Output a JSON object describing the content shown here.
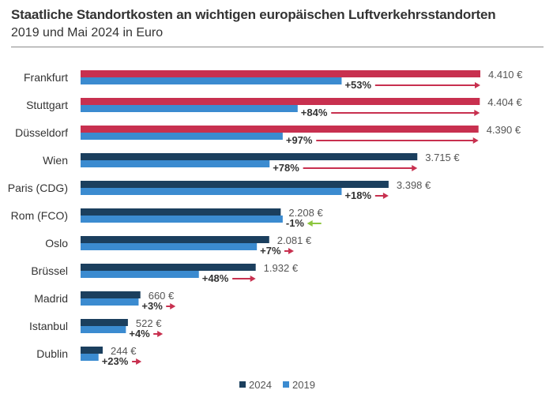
{
  "title": "Staatliche Standortkosten an wichtigen europäischen Luftverkehrsstandorten",
  "subtitle": "2019 und Mai 2024 in Euro",
  "colors": {
    "highlight_2024": "#c8304f",
    "series_2024": "#1b3f5e",
    "series_2019": "#3b8bd0",
    "arrow_up": "#c8304f",
    "arrow_down": "#8dc63f"
  },
  "chart_data": {
    "type": "bar",
    "orientation": "horizontal",
    "categories": [
      "Frankfurt",
      "Stuttgart",
      "Düsseldorf",
      "Wien",
      "Paris (CDG)",
      "Rom (FCO)",
      "Oslo",
      "Brüssel",
      "Madrid",
      "Istanbul",
      "Dublin"
    ],
    "series": [
      {
        "name": "2024",
        "values": [
          4410,
          4404,
          4390,
          3715,
          3398,
          2208,
          2081,
          1932,
          660,
          522,
          244
        ],
        "labels": [
          "4.410 €",
          "4.404 €",
          "4.390 €",
          "3.715 €",
          "3.398 €",
          "2.208 €",
          "2.081 €",
          "1.932 €",
          "660 €",
          "522 €",
          "244 €"
        ],
        "highlighted": [
          true,
          true,
          true,
          false,
          false,
          false,
          false,
          false,
          false,
          false,
          false
        ]
      },
      {
        "name": "2019",
        "values": [
          2880,
          2395,
          2230,
          2085,
          2880,
          2230,
          1945,
          1305,
          640,
          500,
          198
        ]
      }
    ],
    "change_labels": [
      "+53%",
      "+84%",
      "+97%",
      "+78%",
      "+18%",
      "-1%",
      "+7%",
      "+48%",
      "+3%",
      "+4%",
      "+23%"
    ],
    "change_direction": [
      "up",
      "up",
      "up",
      "up",
      "up",
      "down",
      "up",
      "up",
      "up",
      "up",
      "up"
    ],
    "xlim": [
      0,
      4410
    ],
    "grid": false,
    "legend_position": "bottom-center"
  }
}
